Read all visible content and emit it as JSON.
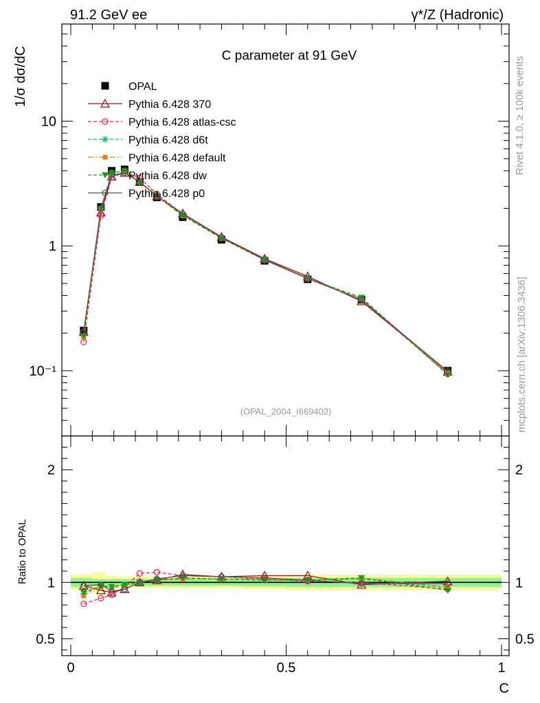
{
  "header": {
    "left": "91.2 GeV ee",
    "right": "γ*/Z (Hadronic)"
  },
  "side_labels": {
    "rivet": "Rivet 4.1.0, ≥ 100k events",
    "mcplots": "mcplots.cern.ch [arXiv:1306.3436]"
  },
  "reference_tag": "(OPAL_2004_I669402)",
  "chart_data": [
    {
      "type": "line",
      "panel": "main",
      "title": "C parameter at 91 GeV",
      "ylabel": "1/σ  dσ/dC",
      "xlabel": "C",
      "yscale": "log",
      "xlim": [
        0,
        1
      ],
      "ylim": [
        0.03,
        60
      ],
      "yticks": [
        0.1,
        1,
        10
      ],
      "ytick_labels": [
        "10⁻¹",
        "1",
        "10"
      ],
      "x": [
        0.03,
        0.07,
        0.095,
        0.125,
        0.16,
        0.2,
        0.26,
        0.35,
        0.45,
        0.55,
        0.675,
        0.875
      ],
      "legend_position": "top-left",
      "series": [
        {
          "name": "OPAL",
          "color": "#000000",
          "marker": "square",
          "line": "none",
          "values": [
            0.21,
            2.05,
            4.0,
            4.1,
            3.25,
            2.45,
            1.7,
            1.12,
            0.76,
            0.54,
            0.37,
            0.1
          ]
        },
        {
          "name": "Pythia 6.428 370",
          "color": "#8b1a1a",
          "marker": "triangle-open",
          "line": "solid",
          "values": [
            0.205,
            1.85,
            3.6,
            3.85,
            3.25,
            2.5,
            1.82,
            1.18,
            0.79,
            0.57,
            0.36,
            0.098
          ]
        },
        {
          "name": "Pythia 6.428 atlas-csc",
          "color": "#e8294f",
          "marker": "circle-open",
          "line": "dashed",
          "values": [
            0.17,
            1.75,
            3.55,
            3.95,
            3.5,
            2.6,
            1.8,
            1.17,
            0.77,
            0.545,
            0.37,
            0.094
          ]
        },
        {
          "name": "Pythia 6.428 d6t",
          "color": "#1abc7a",
          "marker": "star",
          "line": "dashed",
          "values": [
            0.19,
            2.0,
            3.85,
            4.0,
            3.25,
            2.5,
            1.75,
            1.15,
            0.77,
            0.55,
            0.38,
            0.095
          ]
        },
        {
          "name": "Pythia 6.428 default",
          "color": "#f07a25",
          "marker": "square-small",
          "line": "dashdot",
          "values": [
            0.185,
            2.0,
            3.8,
            4.0,
            3.3,
            2.5,
            1.75,
            1.15,
            0.78,
            0.55,
            0.38,
            0.096
          ]
        },
        {
          "name": "Pythia 6.428 dw",
          "color": "#1a9e1a",
          "marker": "triangle-down",
          "line": "dashed",
          "values": [
            0.19,
            2.0,
            3.85,
            4.0,
            3.25,
            2.5,
            1.76,
            1.15,
            0.77,
            0.55,
            0.385,
            0.093
          ]
        },
        {
          "name": "Pythia 6.428 p0",
          "color": "#555555",
          "marker": "circle-open",
          "line": "solid",
          "values": [
            0.205,
            2.0,
            3.7,
            3.85,
            3.25,
            2.5,
            1.8,
            1.17,
            0.78,
            0.55,
            0.37,
            0.099
          ]
        }
      ]
    },
    {
      "type": "line",
      "panel": "ratio",
      "ylabel": "Ratio to OPAL",
      "xlabel": "C",
      "xlim": [
        0,
        1
      ],
      "ylim": [
        0.35,
        2.3
      ],
      "yticks": [
        0.5,
        1,
        2
      ],
      "ytick_labels": [
        "0.5",
        "1",
        "2"
      ],
      "xticks": [
        0,
        0.5,
        1
      ],
      "xtick_labels": [
        "0",
        "0.5",
        "1"
      ],
      "x": [
        0.03,
        0.07,
        0.095,
        0.125,
        0.16,
        0.2,
        0.26,
        0.35,
        0.45,
        0.55,
        0.675,
        0.875
      ],
      "uncertainty_bins": {
        "edges": [
          0,
          0.05,
          0.08,
          0.11,
          0.14,
          0.18,
          0.22,
          0.3,
          0.4,
          0.5,
          0.6,
          0.75,
          1.0
        ],
        "stat": [
          0.04,
          0.03,
          0.03,
          0.03,
          0.03,
          0.03,
          0.03,
          0.03,
          0.035,
          0.04,
          0.04,
          0.04
        ],
        "total": [
          0.07,
          0.09,
          0.06,
          0.05,
          0.05,
          0.05,
          0.05,
          0.05,
          0.06,
          0.07,
          0.07,
          0.07
        ]
      },
      "series": [
        {
          "name": "Pythia 6.428 370",
          "color": "#8b1a1a",
          "marker": "triangle-open",
          "line": "solid",
          "values": [
            0.97,
            0.93,
            0.91,
            0.94,
            1.0,
            1.02,
            1.07,
            1.05,
            1.06,
            1.06,
            0.98,
            1.01
          ]
        },
        {
          "name": "Pythia 6.428 atlas-csc",
          "color": "#e8294f",
          "marker": "circle-open",
          "line": "dashed",
          "values": [
            0.81,
            0.86,
            0.89,
            0.96,
            1.08,
            1.09,
            1.06,
            1.05,
            1.03,
            1.01,
            1.0,
            0.94
          ]
        },
        {
          "name": "Pythia 6.428 d6t",
          "color": "#1abc7a",
          "marker": "star",
          "line": "dashed",
          "values": [
            0.9,
            0.97,
            0.96,
            0.98,
            1.0,
            1.02,
            1.03,
            1.03,
            1.02,
            1.02,
            1.03,
            0.95
          ]
        },
        {
          "name": "Pythia 6.428 default",
          "color": "#f07a25",
          "marker": "square-small",
          "line": "dashdot",
          "values": [
            0.88,
            0.97,
            0.95,
            0.98,
            1.01,
            1.02,
            1.03,
            1.03,
            1.03,
            1.02,
            1.04,
            0.96
          ]
        },
        {
          "name": "Pythia 6.428 dw",
          "color": "#1a9e1a",
          "marker": "triangle-down",
          "line": "dashed",
          "values": [
            0.91,
            0.97,
            0.96,
            0.98,
            1.0,
            1.02,
            1.04,
            1.03,
            1.02,
            1.02,
            1.04,
            0.93
          ]
        },
        {
          "name": "Pythia 6.428 p0",
          "color": "#555555",
          "marker": "circle-open",
          "line": "solid",
          "values": [
            0.97,
            0.98,
            0.92,
            0.94,
            1.0,
            1.03,
            1.06,
            1.05,
            1.04,
            1.02,
            0.99,
            0.99
          ]
        }
      ]
    }
  ]
}
